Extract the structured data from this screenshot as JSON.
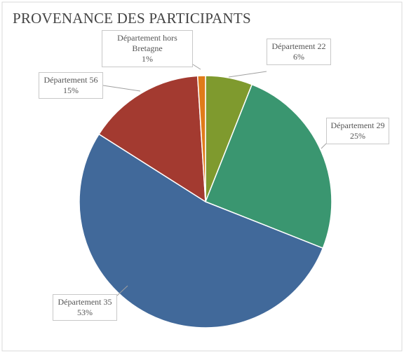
{
  "chart_data": {
    "type": "pie",
    "title": "PROVENANCE DES PARTICIPANTS",
    "categories": [
      "Département 22",
      "Département 29",
      "Département 35",
      "Département 56",
      "Département hors Bretagne"
    ],
    "values": [
      6,
      25,
      53,
      15,
      1
    ],
    "value_labels": [
      "6%",
      "25%",
      "53%",
      "15%",
      "1%"
    ],
    "colors": [
      "#7f9a2e",
      "#3a9670",
      "#41699a",
      "#a33a30",
      "#e07b1a"
    ]
  }
}
